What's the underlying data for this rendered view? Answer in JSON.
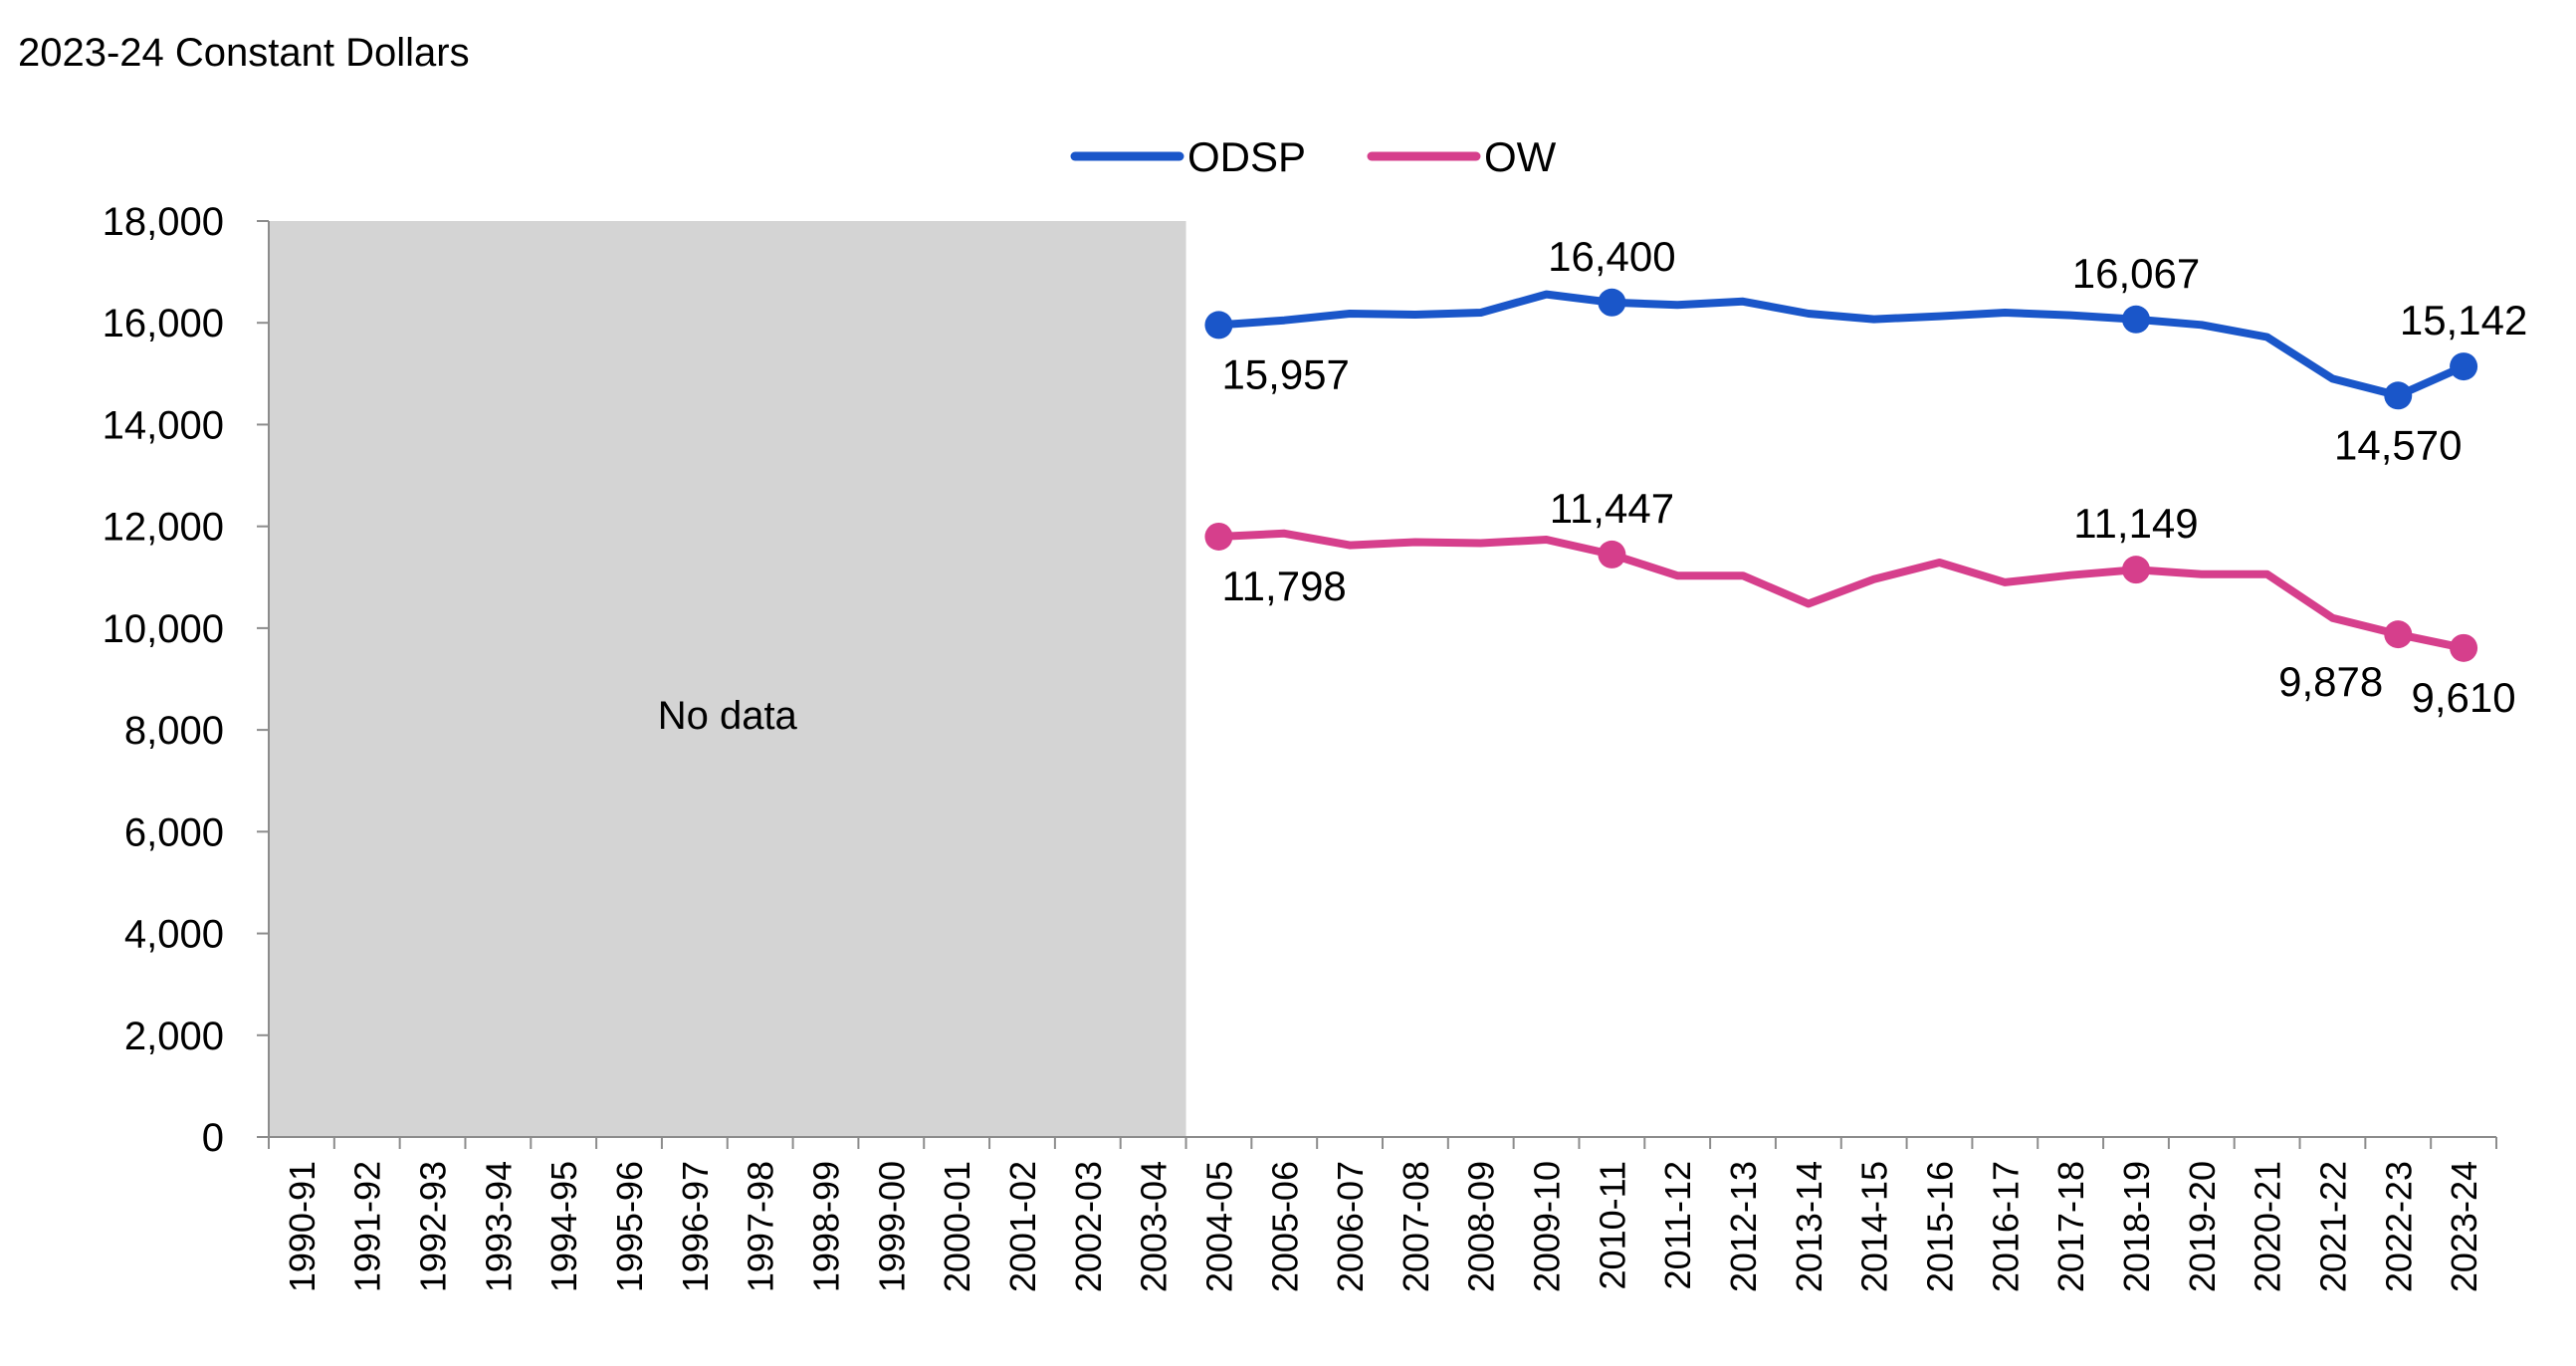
{
  "chart_data": {
    "type": "line",
    "unit_label": "2023-24 Constant Dollars",
    "categories": [
      "1990-91",
      "1991-92",
      "1992-93",
      "1993-94",
      "1994-95",
      "1995-96",
      "1996-97",
      "1997-98",
      "1998-99",
      "1999-00",
      "2000-01",
      "2001-02",
      "2002-03",
      "2003-04",
      "2004-05",
      "2005-06",
      "2006-07",
      "2007-08",
      "2008-09",
      "2009-10",
      "2010-11",
      "2011-12",
      "2012-13",
      "2013-14",
      "2014-15",
      "2015-16",
      "2016-17",
      "2017-18",
      "2018-19",
      "2019-20",
      "2020-21",
      "2021-22",
      "2022-23",
      "2023-24"
    ],
    "ylim": [
      0,
      18000
    ],
    "yticks": [
      0,
      2000,
      4000,
      6000,
      8000,
      10000,
      12000,
      14000,
      16000,
      18000
    ],
    "ytick_labels": [
      "0",
      "2,000",
      "4,000",
      "6,000",
      "8,000",
      "10,000",
      "12,000",
      "14,000",
      "16,000",
      "18,000"
    ],
    "grid": false,
    "legend_position": "top-center",
    "no_data": {
      "label": "No data",
      "from": "1990-91",
      "to": "2003-04",
      "color": "#d4d4d4"
    },
    "series": [
      {
        "name": "ODSP",
        "color": "#1a56c9",
        "values": [
          null,
          null,
          null,
          null,
          null,
          null,
          null,
          null,
          null,
          null,
          null,
          null,
          null,
          null,
          15957,
          16050,
          16180,
          16160,
          16200,
          16560,
          16400,
          16350,
          16420,
          16180,
          16070,
          16130,
          16200,
          16150,
          16067,
          15960,
          15720,
          14900,
          14570,
          15142
        ],
        "markers": [
          {
            "index": 14,
            "label": "15,957",
            "pos": "below"
          },
          {
            "index": 20,
            "label": "16,400",
            "pos": "above"
          },
          {
            "index": 28,
            "label": "16,067",
            "pos": "above"
          },
          {
            "index": 32,
            "label": "14,570",
            "pos": "below"
          },
          {
            "index": 33,
            "label": "15,142",
            "pos": "above"
          }
        ]
      },
      {
        "name": "OW",
        "color": "#d63f8c",
        "values": [
          null,
          null,
          null,
          null,
          null,
          null,
          null,
          null,
          null,
          null,
          null,
          null,
          null,
          null,
          11798,
          11860,
          11630,
          11690,
          11670,
          11740,
          11447,
          11030,
          11030,
          10480,
          10960,
          11290,
          10900,
          11040,
          11149,
          11060,
          11060,
          10200,
          9878,
          9610
        ],
        "markers": [
          {
            "index": 14,
            "label": "11,798",
            "pos": "below"
          },
          {
            "index": 20,
            "label": "11,447",
            "pos": "above"
          },
          {
            "index": 28,
            "label": "11,149",
            "pos": "above"
          },
          {
            "index": 32,
            "label": "9,878",
            "pos": "below-left"
          },
          {
            "index": 33,
            "label": "9,610",
            "pos": "below"
          }
        ]
      }
    ]
  }
}
